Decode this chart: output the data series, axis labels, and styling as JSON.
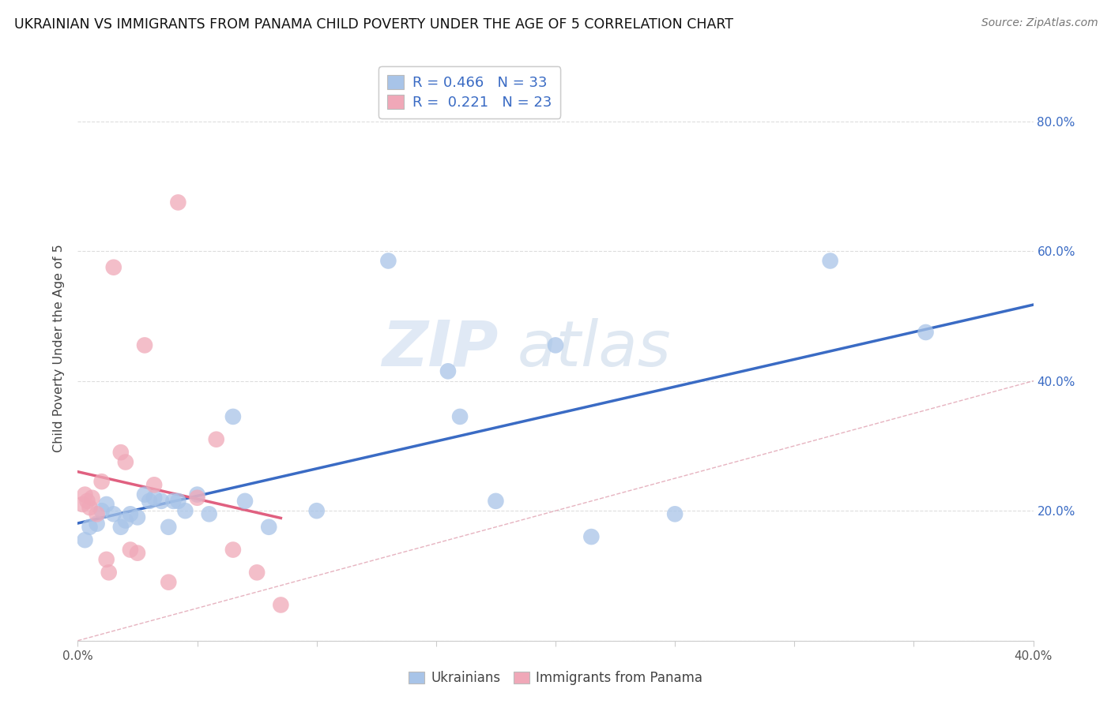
{
  "title": "UKRAINIAN VS IMMIGRANTS FROM PANAMA CHILD POVERTY UNDER THE AGE OF 5 CORRELATION CHART",
  "source": "Source: ZipAtlas.com",
  "ylabel": "Child Poverty Under the Age of 5",
  "xlim": [
    0.0,
    0.4
  ],
  "ylim": [
    0.0,
    0.9
  ],
  "x_ticks": [
    0.0,
    0.05,
    0.1,
    0.15,
    0.2,
    0.25,
    0.3,
    0.35,
    0.4
  ],
  "x_tick_labels_show": [
    "0.0%",
    "",
    "",
    "",
    "",
    "",
    "",
    "",
    "40.0%"
  ],
  "y_ticks": [
    0.0,
    0.2,
    0.4,
    0.6,
    0.8
  ],
  "y_tick_labels": [
    "",
    "20.0%",
    "40.0%",
    "60.0%",
    "80.0%"
  ],
  "legend_r_blue": "0.466",
  "legend_n_blue": "33",
  "legend_r_pink": "0.221",
  "legend_n_pink": "23",
  "blue_scatter_color": "#A8C4E8",
  "pink_scatter_color": "#F0A8B8",
  "blue_line_color": "#3A6BC4",
  "pink_line_color": "#E06080",
  "diagonal_color": "#E0A0B0",
  "text_color": "#3A6BC4",
  "watermark_color": "#D0E4F8",
  "watermark": "ZIPatlas",
  "ukrainians_x": [
    0.003,
    0.005,
    0.008,
    0.01,
    0.012,
    0.015,
    0.018,
    0.02,
    0.022,
    0.025,
    0.028,
    0.03,
    0.032,
    0.035,
    0.038,
    0.04,
    0.042,
    0.045,
    0.05,
    0.055,
    0.065,
    0.07,
    0.08,
    0.1,
    0.13,
    0.155,
    0.16,
    0.175,
    0.2,
    0.215,
    0.25,
    0.315,
    0.355
  ],
  "ukrainians_y": [
    0.155,
    0.175,
    0.18,
    0.2,
    0.21,
    0.195,
    0.175,
    0.185,
    0.195,
    0.19,
    0.225,
    0.215,
    0.22,
    0.215,
    0.175,
    0.215,
    0.215,
    0.2,
    0.225,
    0.195,
    0.345,
    0.215,
    0.175,
    0.2,
    0.585,
    0.415,
    0.345,
    0.215,
    0.455,
    0.16,
    0.195,
    0.585,
    0.475
  ],
  "panama_x": [
    0.002,
    0.003,
    0.004,
    0.005,
    0.006,
    0.008,
    0.01,
    0.012,
    0.013,
    0.015,
    0.018,
    0.02,
    0.022,
    0.025,
    0.028,
    0.032,
    0.038,
    0.042,
    0.05,
    0.058,
    0.065,
    0.075,
    0.085
  ],
  "panama_y": [
    0.21,
    0.225,
    0.215,
    0.205,
    0.22,
    0.195,
    0.245,
    0.125,
    0.105,
    0.575,
    0.29,
    0.275,
    0.14,
    0.135,
    0.455,
    0.24,
    0.09,
    0.675,
    0.22,
    0.31,
    0.14,
    0.105,
    0.055
  ]
}
